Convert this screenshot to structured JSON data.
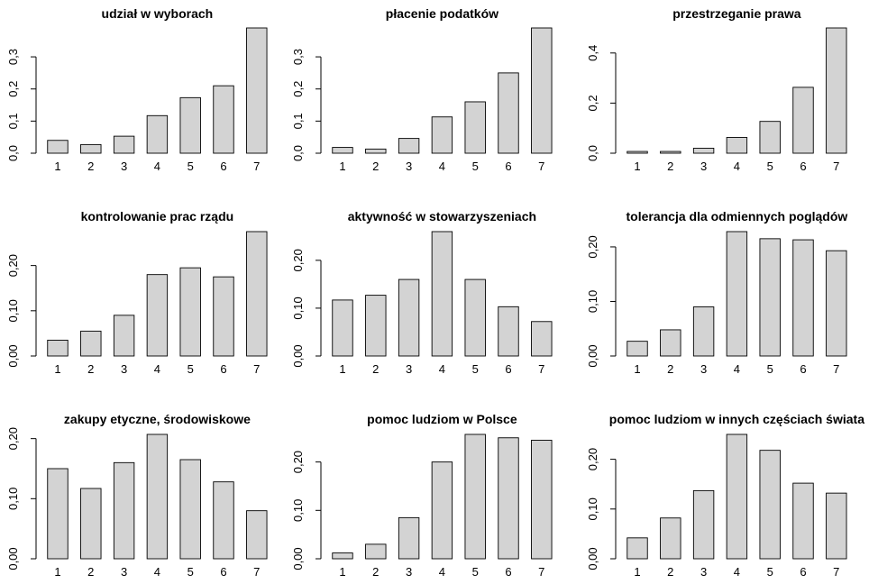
{
  "chart_data": [
    {
      "type": "bar",
      "title": "udział w wyborach",
      "categories": [
        "1",
        "2",
        "3",
        "4",
        "5",
        "6",
        "7"
      ],
      "values": [
        0.04,
        0.027,
        0.053,
        0.117,
        0.173,
        0.21,
        0.39
      ],
      "ylim": [
        0,
        0.39
      ],
      "yticks": [
        "0,0",
        "0,1",
        "0,2",
        "0,3"
      ],
      "ytick_values": [
        0,
        0.1,
        0.2,
        0.3
      ]
    },
    {
      "type": "bar",
      "title": "płacenie podatków",
      "categories": [
        "1",
        "2",
        "3",
        "4",
        "5",
        "6",
        "7"
      ],
      "values": [
        0.018,
        0.013,
        0.046,
        0.113,
        0.16,
        0.25,
        0.39
      ],
      "ylim": [
        0,
        0.39
      ],
      "yticks": [
        "0,0",
        "0,1",
        "0,2",
        "0,3"
      ],
      "ytick_values": [
        0,
        0.1,
        0.2,
        0.3
      ]
    },
    {
      "type": "bar",
      "title": "przestrzeganie prawa",
      "categories": [
        "1",
        "2",
        "3",
        "4",
        "5",
        "6",
        "7"
      ],
      "values": [
        0.007,
        0.007,
        0.02,
        0.063,
        0.127,
        0.263,
        0.5
      ],
      "ylim": [
        0,
        0.5
      ],
      "yticks": [
        "0,0",
        "0,2",
        "0,4"
      ],
      "ytick_values": [
        0,
        0.2,
        0.4
      ]
    },
    {
      "type": "bar",
      "title": "kontrolowanie prac rządu",
      "categories": [
        "1",
        "2",
        "3",
        "4",
        "5",
        "6",
        "7"
      ],
      "values": [
        0.035,
        0.055,
        0.09,
        0.18,
        0.195,
        0.175,
        0.275
      ],
      "ylim": [
        0,
        0.275
      ],
      "yticks": [
        "0,00",
        "0,10",
        "0,20"
      ],
      "ytick_values": [
        0,
        0.1,
        0.2
      ]
    },
    {
      "type": "bar",
      "title": "aktywność w stowarzyszeniach",
      "categories": [
        "1",
        "2",
        "3",
        "4",
        "5",
        "6",
        "7"
      ],
      "values": [
        0.117,
        0.127,
        0.16,
        0.26,
        0.16,
        0.103,
        0.072
      ],
      "ylim": [
        0,
        0.26
      ],
      "yticks": [
        "0,00",
        "0,10",
        "0,20"
      ],
      "ytick_values": [
        0,
        0.1,
        0.2
      ]
    },
    {
      "type": "bar",
      "title": "tolerancja dla odmiennych poglądów",
      "categories": [
        "1",
        "2",
        "3",
        "4",
        "5",
        "6",
        "7"
      ],
      "values": [
        0.027,
        0.048,
        0.09,
        0.228,
        0.215,
        0.213,
        0.193
      ],
      "ylim": [
        0,
        0.228
      ],
      "yticks": [
        "0,00",
        "0,10",
        "0,20"
      ],
      "ytick_values": [
        0,
        0.1,
        0.2
      ]
    },
    {
      "type": "bar",
      "title": "zakupy etyczne, środowiskowe",
      "categories": [
        "1",
        "2",
        "3",
        "4",
        "5",
        "6",
        "7"
      ],
      "values": [
        0.15,
        0.117,
        0.16,
        0.207,
        0.165,
        0.128,
        0.08
      ],
      "ylim": [
        0,
        0.207
      ],
      "yticks": [
        "0,00",
        "0,10",
        "0,20"
      ],
      "ytick_values": [
        0,
        0.1,
        0.2
      ]
    },
    {
      "type": "bar",
      "title": "pomoc ludziom w Polsce",
      "categories": [
        "1",
        "2",
        "3",
        "4",
        "5",
        "6",
        "7"
      ],
      "values": [
        0.012,
        0.03,
        0.085,
        0.2,
        0.257,
        0.25,
        0.245
      ],
      "ylim": [
        0,
        0.257
      ],
      "yticks": [
        "0,00",
        "0,10",
        "0,20"
      ],
      "ytick_values": [
        0,
        0.1,
        0.2
      ]
    },
    {
      "type": "bar",
      "title": "pomoc ludziom w innych częściach świata",
      "categories": [
        "1",
        "2",
        "3",
        "4",
        "5",
        "6",
        "7"
      ],
      "values": [
        0.042,
        0.082,
        0.137,
        0.25,
        0.218,
        0.152,
        0.132
      ],
      "ylim": [
        0,
        0.25
      ],
      "yticks": [
        "0,00",
        "0,10",
        "0,20"
      ],
      "ytick_values": [
        0,
        0.1,
        0.2
      ]
    }
  ],
  "colors": {
    "bar_fill": "#d3d3d3",
    "bar_stroke": "#000000",
    "background": "#ffffff"
  }
}
